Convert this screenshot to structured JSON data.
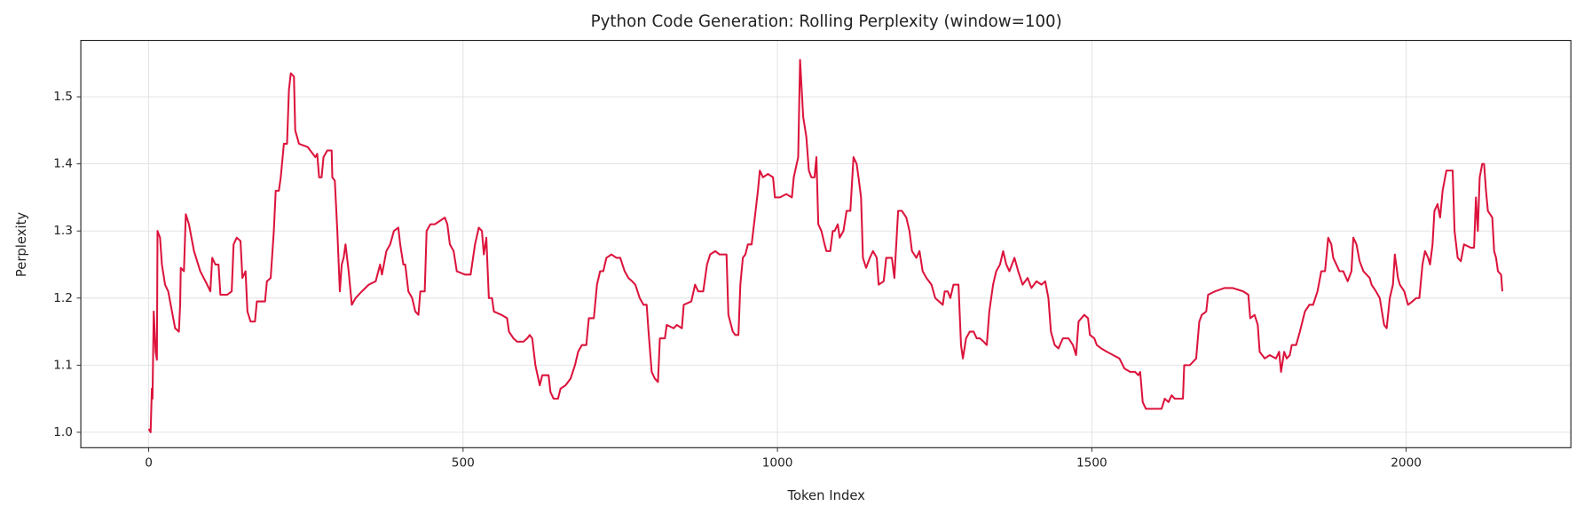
{
  "chart_data": {
    "type": "line",
    "title": "Python Code Generation: Rolling Perplexity (window=100)",
    "x_label": "Token Index",
    "y_label": "Perplexity",
    "color": "#dc143c",
    "grid": true,
    "xlim": [
      -108,
      2262
    ],
    "ylim": [
      0.977,
      1.584
    ],
    "xticks": [
      0,
      500,
      1000,
      1500,
      2000
    ],
    "yticks": [
      {
        "value": 1,
        "label": "1.0"
      },
      1.1,
      1.2,
      1.3,
      1.4,
      1.5
    ],
    "x": [
      0,
      3,
      5,
      6,
      8,
      11,
      13,
      14,
      18,
      21,
      26,
      31,
      37,
      42,
      48,
      50,
      51,
      56,
      59,
      64,
      72,
      82,
      93,
      98,
      101,
      106,
      111,
      114,
      125,
      132,
      135,
      140,
      146,
      149,
      154,
      157,
      162,
      169,
      172,
      185,
      188,
      194,
      199,
      202,
      207,
      210,
      215,
      220,
      223,
      226,
      231,
      233,
      239,
      253,
      265,
      268,
      271,
      275,
      278,
      284,
      291,
      292,
      296,
      300,
      304,
      307,
      310,
      313,
      318,
      323,
      329,
      339,
      350,
      361,
      368,
      371,
      378,
      384,
      390,
      397,
      400,
      405,
      408,
      413,
      419,
      424,
      429,
      432,
      439,
      442,
      448,
      455,
      463,
      471,
      475,
      479,
      485,
      490,
      503,
      512,
      519,
      525,
      530,
      533,
      537,
      541,
      546,
      549,
      561,
      570,
      573,
      580,
      586,
      596,
      602,
      606,
      610,
      615,
      622,
      626,
      636,
      639,
      644,
      651,
      655,
      663,
      671,
      678,
      683,
      689,
      696,
      700,
      708,
      713,
      718,
      723,
      728,
      736,
      744,
      750,
      757,
      763,
      769,
      774,
      781,
      787,
      792,
      795,
      800,
      805,
      810,
      813,
      821,
      824,
      835,
      840,
      848,
      851,
      863,
      869,
      874,
      882,
      888,
      893,
      901,
      908,
      919,
      922,
      929,
      933,
      938,
      941,
      945,
      949,
      953,
      959,
      964,
      969,
      972,
      977,
      985,
      993,
      996,
      1004,
      1014,
      1023,
      1026,
      1033,
      1036,
      1041,
      1046,
      1050,
      1054,
      1059,
      1062,
      1065,
      1070,
      1075,
      1078,
      1084,
      1088,
      1091,
      1096,
      1099,
      1105,
      1110,
      1116,
      1121,
      1126,
      1129,
      1133,
      1136,
      1141,
      1147,
      1152,
      1158,
      1161,
      1169,
      1173,
      1182,
      1186,
      1192,
      1198,
      1205,
      1210,
      1214,
      1221,
      1226,
      1231,
      1237,
      1245,
      1251,
      1263,
      1266,
      1271,
      1275,
      1280,
      1288,
      1292,
      1295,
      1300,
      1306,
      1312,
      1317,
      1322,
      1328,
      1333,
      1337,
      1343,
      1348,
      1354,
      1359,
      1364,
      1369,
      1377,
      1383,
      1390,
      1398,
      1404,
      1412,
      1420,
      1426,
      1431,
      1435,
      1441,
      1447,
      1454,
      1463,
      1470,
      1475,
      1479,
      1488,
      1494,
      1497,
      1504,
      1508,
      1515,
      1524,
      1534,
      1544,
      1552,
      1561,
      1569,
      1574,
      1577,
      1581,
      1586,
      1595,
      1603,
      1611,
      1616,
      1622,
      1627,
      1632,
      1645,
      1647,
      1656,
      1666,
      1671,
      1675,
      1682,
      1685,
      1696,
      1711,
      1724,
      1741,
      1749,
      1752,
      1759,
      1764,
      1767,
      1775,
      1783,
      1793,
      1798,
      1801,
      1806,
      1810,
      1815,
      1818,
      1825,
      1831,
      1839,
      1846,
      1852,
      1859,
      1865,
      1871,
      1876,
      1881,
      1884,
      1889,
      1894,
      1900,
      1907,
      1913,
      1916,
      1921,
      1926,
      1932,
      1942,
      1945,
      1952,
      1958,
      1965,
      1969,
      1974,
      1979,
      1982,
      1987,
      1990,
      1997,
      2003,
      2010,
      2016,
      2021,
      2026,
      2030,
      2035,
      2038,
      2042,
      2045,
      2050,
      2054,
      2058,
      2064,
      2074,
      2077,
      2082,
      2087,
      2092,
      2103,
      2108,
      2111,
      2114,
      2117,
      2121,
      2124,
      2127,
      2130,
      2137,
      2140,
      2143,
      2146,
      2151,
      2153
    ],
    "values": [
      1.005,
      1.0,
      1.065,
      1.05,
      1.18,
      1.12,
      1.108,
      1.3,
      1.29,
      1.25,
      1.22,
      1.21,
      1.18,
      1.155,
      1.15,
      1.19,
      1.245,
      1.24,
      1.325,
      1.31,
      1.27,
      1.24,
      1.22,
      1.21,
      1.26,
      1.25,
      1.25,
      1.205,
      1.205,
      1.21,
      1.28,
      1.29,
      1.285,
      1.23,
      1.24,
      1.18,
      1.165,
      1.165,
      1.195,
      1.195,
      1.225,
      1.23,
      1.3,
      1.36,
      1.36,
      1.38,
      1.43,
      1.43,
      1.51,
      1.535,
      1.53,
      1.45,
      1.43,
      1.425,
      1.41,
      1.415,
      1.38,
      1.38,
      1.41,
      1.42,
      1.42,
      1.38,
      1.375,
      1.3,
      1.21,
      1.25,
      1.26,
      1.28,
      1.24,
      1.19,
      1.2,
      1.21,
      1.22,
      1.225,
      1.25,
      1.235,
      1.27,
      1.28,
      1.3,
      1.305,
      1.28,
      1.25,
      1.25,
      1.21,
      1.2,
      1.18,
      1.175,
      1.21,
      1.21,
      1.3,
      1.31,
      1.31,
      1.315,
      1.32,
      1.31,
      1.28,
      1.27,
      1.24,
      1.235,
      1.235,
      1.28,
      1.305,
      1.3,
      1.265,
      1.29,
      1.2,
      1.2,
      1.18,
      1.175,
      1.17,
      1.15,
      1.14,
      1.135,
      1.135,
      1.14,
      1.145,
      1.14,
      1.1,
      1.07,
      1.085,
      1.085,
      1.06,
      1.05,
      1.05,
      1.065,
      1.07,
      1.08,
      1.1,
      1.12,
      1.13,
      1.13,
      1.17,
      1.17,
      1.22,
      1.24,
      1.24,
      1.26,
      1.265,
      1.26,
      1.26,
      1.24,
      1.23,
      1.225,
      1.22,
      1.2,
      1.19,
      1.19,
      1.15,
      1.09,
      1.08,
      1.075,
      1.14,
      1.14,
      1.16,
      1.155,
      1.16,
      1.155,
      1.19,
      1.195,
      1.22,
      1.21,
      1.21,
      1.25,
      1.265,
      1.27,
      1.265,
      1.265,
      1.175,
      1.15,
      1.145,
      1.145,
      1.22,
      1.26,
      1.265,
      1.28,
      1.28,
      1.32,
      1.36,
      1.39,
      1.38,
      1.385,
      1.38,
      1.35,
      1.35,
      1.355,
      1.35,
      1.38,
      1.41,
      1.555,
      1.47,
      1.44,
      1.39,
      1.38,
      1.38,
      1.41,
      1.31,
      1.3,
      1.28,
      1.27,
      1.27,
      1.3,
      1.3,
      1.31,
      1.29,
      1.3,
      1.33,
      1.33,
      1.41,
      1.4,
      1.38,
      1.35,
      1.26,
      1.245,
      1.26,
      1.27,
      1.26,
      1.22,
      1.225,
      1.26,
      1.26,
      1.23,
      1.33,
      1.33,
      1.32,
      1.3,
      1.27,
      1.26,
      1.27,
      1.24,
      1.23,
      1.22,
      1.2,
      1.19,
      1.21,
      1.21,
      1.2,
      1.22,
      1.22,
      1.13,
      1.11,
      1.14,
      1.15,
      1.15,
      1.14,
      1.14,
      1.135,
      1.13,
      1.18,
      1.22,
      1.24,
      1.25,
      1.27,
      1.25,
      1.24,
      1.26,
      1.24,
      1.22,
      1.23,
      1.215,
      1.225,
      1.22,
      1.225,
      1.2,
      1.15,
      1.13,
      1.125,
      1.14,
      1.14,
      1.13,
      1.115,
      1.165,
      1.175,
      1.17,
      1.145,
      1.14,
      1.13,
      1.125,
      1.12,
      1.115,
      1.11,
      1.095,
      1.09,
      1.09,
      1.085,
      1.09,
      1.045,
      1.035,
      1.035,
      1.035,
      1.035,
      1.05,
      1.045,
      1.055,
      1.05,
      1.05,
      1.1,
      1.1,
      1.11,
      1.165,
      1.175,
      1.18,
      1.205,
      1.21,
      1.215,
      1.215,
      1.21,
      1.205,
      1.17,
      1.175,
      1.16,
      1.12,
      1.11,
      1.115,
      1.11,
      1.12,
      1.09,
      1.12,
      1.11,
      1.115,
      1.13,
      1.13,
      1.15,
      1.18,
      1.19,
      1.19,
      1.21,
      1.24,
      1.24,
      1.29,
      1.28,
      1.26,
      1.25,
      1.24,
      1.24,
      1.225,
      1.24,
      1.29,
      1.28,
      1.255,
      1.24,
      1.23,
      1.22,
      1.21,
      1.2,
      1.16,
      1.155,
      1.2,
      1.22,
      1.265,
      1.23,
      1.22,
      1.21,
      1.19,
      1.195,
      1.2,
      1.2,
      1.25,
      1.27,
      1.26,
      1.25,
      1.28,
      1.33,
      1.34,
      1.32,
      1.36,
      1.39,
      1.39,
      1.3,
      1.26,
      1.255,
      1.28,
      1.275,
      1.275,
      1.35,
      1.3,
      1.38,
      1.4,
      1.4,
      1.36,
      1.33,
      1.32,
      1.27,
      1.26,
      1.24,
      1.235,
      1.21
    ]
  }
}
